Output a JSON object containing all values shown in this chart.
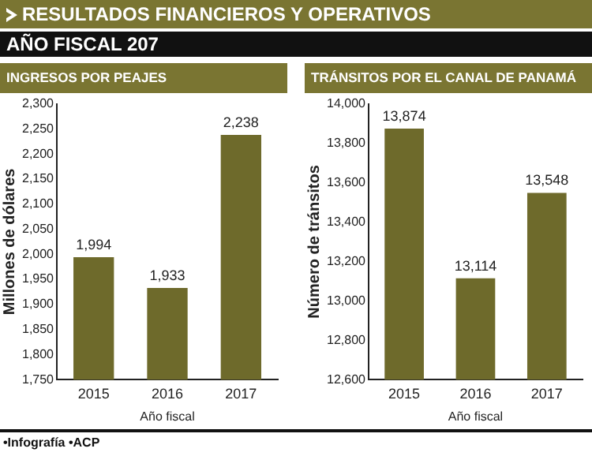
{
  "chart_data": [
    {
      "type": "other",
      "title": "RESULTADOS FINANCIEROS Y OPERATIVOS",
      "subtitle": "AÑO FISCAL 207"
    },
    {
      "type": "bar",
      "title": "INGRESOS POR PEAJES",
      "xlabel": "Año fiscal",
      "ylabel": "Millones de dólares",
      "categories": [
        "2015",
        "2016",
        "2017"
      ],
      "values": [
        1994,
        1933,
        2238
      ],
      "value_labels": [
        "1,994",
        "1,933",
        "2,238"
      ],
      "color": "#6e6a2b",
      "ylim": [
        1750,
        2300
      ],
      "yticks": [
        {
          "value": 1750,
          "label": "1,750"
        },
        {
          "value": 1800,
          "label": "1,800"
        },
        {
          "value": 1850,
          "label": "1,850"
        },
        {
          "value": 1900,
          "label": "1,900"
        },
        {
          "value": 1950,
          "label": "1,950"
        },
        {
          "value": 2000,
          "label": "2,000"
        },
        {
          "value": 2050,
          "label": "2,050"
        },
        {
          "value": 2100,
          "label": "2,100"
        },
        {
          "value": 2150,
          "label": "2,150"
        },
        {
          "value": 2200,
          "label": "2,200"
        },
        {
          "value": 2250,
          "label": "2,250"
        },
        {
          "value": 2300,
          "label": "2,300"
        }
      ],
      "grid": false,
      "annotations": [
        "•Infografía •ACP"
      ]
    },
    {
      "type": "bar",
      "title": "TRÁNSITOS POR EL CANAL DE PANAMÁ",
      "xlabel": "Año fiscal",
      "ylabel": "Número de tránsitos",
      "categories": [
        "2015",
        "2016",
        "2017"
      ],
      "values": [
        13874,
        13114,
        13548
      ],
      "value_labels": [
        "13,874",
        "13,114",
        "13,548"
      ],
      "color": "#6e6a2b",
      "ylim": [
        12600,
        14000
      ],
      "yticks": [
        {
          "value": 12600,
          "label": "12,600"
        },
        {
          "value": 12800,
          "label": "12,800"
        },
        {
          "value": 13000,
          "label": "13,000"
        },
        {
          "value": 13200,
          "label": "13,200"
        },
        {
          "value": 13400,
          "label": "13,400"
        },
        {
          "value": 13600,
          "label": "13,600"
        },
        {
          "value": 13800,
          "label": "13,800"
        },
        {
          "value": 14000,
          "label": "14,000"
        }
      ],
      "grid": false
    }
  ]
}
